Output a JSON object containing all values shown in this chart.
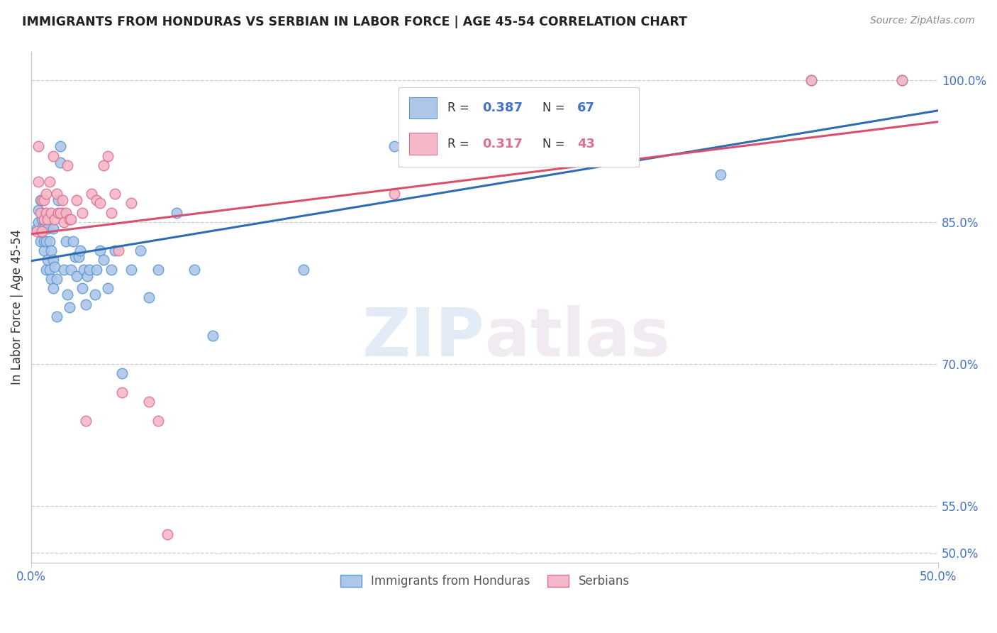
{
  "title": "IMMIGRANTS FROM HONDURAS VS SERBIAN IN LABOR FORCE | AGE 45-54 CORRELATION CHART",
  "source": "Source: ZipAtlas.com",
  "ylabel": "In Labor Force | Age 45-54",
  "xlim": [
    0.0,
    0.5
  ],
  "ylim": [
    0.49,
    1.03
  ],
  "yticks": [
    0.5,
    0.55,
    0.7,
    0.85,
    1.0
  ],
  "ytick_labels": [
    "50.0%",
    "55.0%",
    "70.0%",
    "85.0%",
    "100.0%"
  ],
  "xticks": [
    0.0,
    0.5
  ],
  "xtick_labels": [
    "0.0%",
    "50.0%"
  ],
  "honduras_color": "#aec6e8",
  "honduras_edge": "#5b9bd5",
  "serbia_color": "#f4b8c8",
  "serbia_edge": "#e07090",
  "trend_honduras_color": "#2e6db4",
  "trend_serbia_color": "#d94f6e",
  "legend_R_honduras": "0.387",
  "legend_N_honduras": "67",
  "legend_R_serbia": "0.317",
  "legend_N_serbia": "43",
  "watermark_zip": "ZIP",
  "watermark_atlas": "atlas",
  "title_color": "#222222",
  "axis_label_color": "#4472c4",
  "source_color": "#888888",
  "honduras_x": [
    0.003,
    0.004,
    0.004,
    0.005,
    0.005,
    0.005,
    0.006,
    0.006,
    0.006,
    0.007,
    0.007,
    0.007,
    0.007,
    0.008,
    0.008,
    0.008,
    0.009,
    0.009,
    0.01,
    0.01,
    0.011,
    0.011,
    0.012,
    0.012,
    0.012,
    0.013,
    0.014,
    0.014,
    0.015,
    0.016,
    0.016,
    0.017,
    0.018,
    0.019,
    0.02,
    0.021,
    0.022,
    0.023,
    0.024,
    0.025,
    0.026,
    0.027,
    0.028,
    0.029,
    0.03,
    0.031,
    0.032,
    0.035,
    0.036,
    0.038,
    0.04,
    0.042,
    0.044,
    0.046,
    0.05,
    0.055,
    0.06,
    0.065,
    0.07,
    0.08,
    0.09,
    0.1,
    0.15,
    0.2,
    0.38,
    0.43,
    0.48
  ],
  "honduras_y": [
    0.843,
    0.85,
    0.863,
    0.83,
    0.84,
    0.873,
    0.843,
    0.853,
    0.86,
    0.82,
    0.83,
    0.843,
    0.853,
    0.8,
    0.83,
    0.853,
    0.81,
    0.843,
    0.8,
    0.83,
    0.79,
    0.82,
    0.78,
    0.81,
    0.843,
    0.803,
    0.75,
    0.79,
    0.873,
    0.913,
    0.93,
    0.86,
    0.8,
    0.83,
    0.773,
    0.76,
    0.8,
    0.83,
    0.813,
    0.793,
    0.813,
    0.82,
    0.78,
    0.8,
    0.763,
    0.793,
    0.8,
    0.773,
    0.8,
    0.82,
    0.81,
    0.78,
    0.8,
    0.82,
    0.69,
    0.8,
    0.82,
    0.77,
    0.8,
    0.86,
    0.8,
    0.73,
    0.8,
    0.93,
    0.9,
    1.0,
    1.0
  ],
  "serbia_x": [
    0.003,
    0.004,
    0.004,
    0.005,
    0.006,
    0.006,
    0.007,
    0.007,
    0.008,
    0.008,
    0.009,
    0.01,
    0.011,
    0.012,
    0.013,
    0.014,
    0.015,
    0.016,
    0.017,
    0.018,
    0.019,
    0.02,
    0.021,
    0.022,
    0.025,
    0.028,
    0.03,
    0.033,
    0.036,
    0.038,
    0.04,
    0.042,
    0.044,
    0.046,
    0.048,
    0.05,
    0.055,
    0.065,
    0.07,
    0.075,
    0.2,
    0.43,
    0.48
  ],
  "serbia_y": [
    0.84,
    0.893,
    0.93,
    0.86,
    0.84,
    0.873,
    0.853,
    0.873,
    0.86,
    0.88,
    0.853,
    0.893,
    0.86,
    0.92,
    0.853,
    0.88,
    0.86,
    0.86,
    0.873,
    0.85,
    0.86,
    0.91,
    0.853,
    0.853,
    0.873,
    0.86,
    0.64,
    0.88,
    0.873,
    0.87,
    0.91,
    0.92,
    0.86,
    0.88,
    0.82,
    0.67,
    0.87,
    0.66,
    0.64,
    0.52,
    0.88,
    1.0,
    1.0
  ],
  "trend_h_x0": 0.0,
  "trend_h_x1": 0.5,
  "trend_s_x0": 0.0,
  "trend_s_x1": 0.5
}
